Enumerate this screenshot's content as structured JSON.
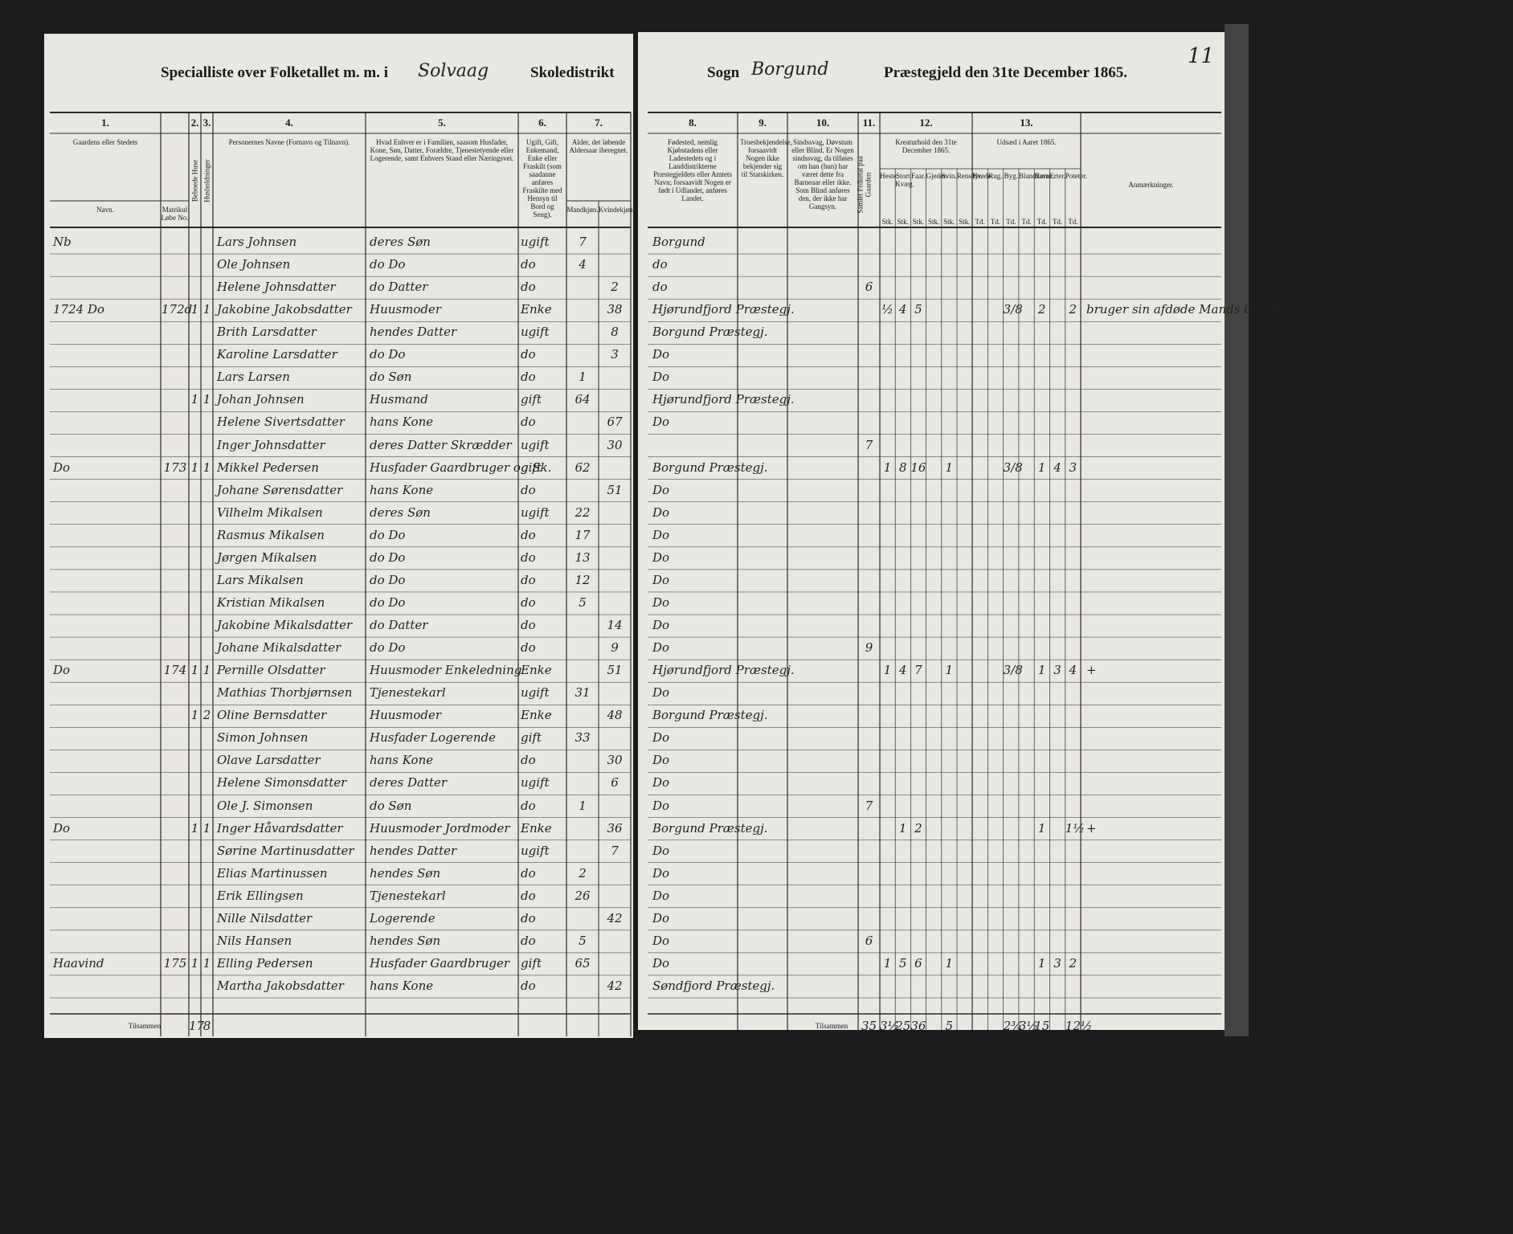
{
  "header": {
    "left_title": "Specialliste over Folketallet m. m. i",
    "place": "Solvaag",
    "district": "Skoledistrikt",
    "sogn_label": "Sogn",
    "sogn": "Borgund",
    "right_title": "Præstegjeld den 31te December 1865.",
    "page_number": "11"
  },
  "columns": [
    {
      "number": "1.",
      "label": "Gaardens eller Stedets",
      "subs": [
        "Navn.",
        "Matrikul Løbe No."
      ]
    },
    {
      "number": "2.",
      "label": "Beboede Huse"
    },
    {
      "number": "3.",
      "label": "Husholdninger"
    },
    {
      "number": "4.",
      "label": "Personernes Navne (Fornavn og Tilnavn)."
    },
    {
      "number": "5.",
      "label": "Hvad Enhver er i Familien, saasom Husfader, Kone, Søn, Datter, Forældre, Tjenestetyende eller Logerende, samt Enhvers Stand eller Næringsvei."
    },
    {
      "number": "6.",
      "label": "Ugift, Gift, Enkemand, Enke eller Fraskilt (som saadanne anføres Fraskilte med Hensyn til Bord og Seng)."
    },
    {
      "number": "7.",
      "label": "Alder, det løbende Aldersaar iberegnet.",
      "subs": [
        "Mandkjøn.",
        "Kvindekjøn."
      ]
    },
    {
      "number": "8.",
      "label": "Fødested, nemlig Kjøbstadens eller Ladestedets og i Landdistrikterne Præstegjeldets eller Amtets Navn; forsaavidt Nogen er født i Udlandet, anføres Landet."
    },
    {
      "number": "9.",
      "label": "Troesbekjendelse, forsaavidt Nogen ikke bekjender sig til Statskirken."
    },
    {
      "number": "10.",
      "label": "Sindssvag, Døvstum eller Blind. Er Nogen sindssvag, da tilføies om han (hun) har været dette fra Barneaar eller ikke. Som Blind anføres den, der ikke har Gangsyn."
    },
    {
      "number": "11.",
      "label": "Samlet Folketal paa Gaarden"
    },
    {
      "number": "12.",
      "label": "Kreaturhold den 31te December 1865.",
      "subs": [
        "Heste.",
        "Stort Kvæg.",
        "Faar.",
        "Gjeder.",
        "Svin.",
        "Rensdyr."
      ],
      "unit": "Stk."
    },
    {
      "number": "13.",
      "label": "Udsæd i Aaret 1865.",
      "subs": [
        "Hvede.",
        "Rug.",
        "Byg.",
        "Blandkorn.",
        "Havre.",
        "Erter.",
        "Poteter."
      ],
      "unit": "Td."
    },
    {
      "label": "Anmærkninger."
    }
  ],
  "rows": [
    {
      "name": "Lars Johnsen",
      "role": "deres Søn",
      "status": "ugift",
      "male_age": "7",
      "birthplace": "Borgund",
      "farm": "Nb"
    },
    {
      "name": "Ole Johnsen",
      "role": "do Do",
      "status": "do",
      "male_age": "4",
      "birthplace": "do"
    },
    {
      "name": "Helene Johnsdatter",
      "role": "do Datter",
      "status": "do",
      "female_age": "2",
      "birthplace": "do",
      "total": "6"
    },
    {
      "farm": "1724 Do",
      "matr": "172d",
      "houses": "1",
      "households": "1",
      "name": "Jakobine Jakobsdatter",
      "role": "Huusmoder",
      "status": "Enke",
      "female_age": "38",
      "birthplace": "Hjørundfjord Præstegj.",
      "livestock": [
        "½",
        "4",
        "5",
        null,
        null,
        null
      ],
      "sowing": [
        null,
        null,
        "3/8",
        null,
        "2",
        null,
        "2"
      ],
      "remark": "bruger sin afdøde Mands Gaard"
    },
    {
      "name": "Brith Larsdatter",
      "role": "hendes Datter",
      "status": "ugift",
      "female_age": "8",
      "birthplace": "Borgund Præstegj."
    },
    {
      "name": "Karoline Larsdatter",
      "role": "do Do",
      "status": "do",
      "female_age": "3",
      "birthplace": "Do"
    },
    {
      "name": "Lars Larsen",
      "role": "do Søn",
      "status": "do",
      "male_age": "1",
      "birthplace": "Do"
    },
    {
      "houses": "1",
      "households": "1",
      "name": "Johan Johnsen",
      "role": "Husmand",
      "status": "gift",
      "male_age": "64",
      "birthplace": "Hjørundfjord Præstegj."
    },
    {
      "name": "Helene Sivertsdatter",
      "role": "hans Kone",
      "status": "do",
      "female_age": "67",
      "birthplace": "Do"
    },
    {
      "name": "Inger Johnsdatter",
      "role": "deres Datter Skrædder",
      "status": "ugift",
      "female_age": "30",
      "total": "7"
    },
    {
      "farm": "Do",
      "matr": "173",
      "houses": "1",
      "households": "1",
      "name": "Mikkel Pedersen",
      "role": "Husfader Gaardbruger og Sk.",
      "status": "gift",
      "male_age": "62",
      "birthplace": "Borgund Præstegj.",
      "livestock": [
        "1",
        "8",
        "16",
        null,
        "1",
        null
      ],
      "sowing": [
        null,
        null,
        "3/8",
        null,
        "1",
        "4",
        "3"
      ]
    },
    {
      "name": "Johane Sørensdatter",
      "role": "hans Kone",
      "status": "do",
      "female_age": "51",
      "birthplace": "Do"
    },
    {
      "name": "Vilhelm Mikalsen",
      "role": "deres Søn",
      "status": "ugift",
      "male_age": "22",
      "birthplace": "Do"
    },
    {
      "name": "Rasmus Mikalsen",
      "role": "do Do",
      "status": "do",
      "male_age": "17",
      "birthplace": "Do"
    },
    {
      "name": "Jørgen Mikalsen",
      "role": "do Do",
      "status": "do",
      "male_age": "13",
      "birthplace": "Do"
    },
    {
      "name": "Lars Mikalsen",
      "role": "do Do",
      "status": "do",
      "male_age": "12",
      "birthplace": "Do"
    },
    {
      "name": "Kristian Mikalsen",
      "role": "do Do",
      "status": "do",
      "male_age": "5",
      "birthplace": "Do"
    },
    {
      "name": "Jakobine Mikalsdatter",
      "role": "do Datter",
      "status": "do",
      "female_age": "14",
      "birthplace": "Do"
    },
    {
      "name": "Johane Mikalsdatter",
      "role": "do Do",
      "status": "do",
      "female_age": "9",
      "birthplace": "Do",
      "total": "9"
    },
    {
      "farm": "Do",
      "matr": "174",
      "houses": "1",
      "households": "1",
      "name": "Pernille Olsdatter",
      "role": "Huusmoder Enkeledning",
      "status": "Enke",
      "female_age": "51",
      "birthplace": "Hjørundfjord Præstegj.",
      "livestock": [
        "1",
        "4",
        "7",
        null,
        "1",
        null
      ],
      "sowing": [
        null,
        null,
        "3/8",
        null,
        "1",
        "3",
        "4"
      ],
      "remark": "+"
    },
    {
      "name": "Mathias Thorbjørnsen",
      "role": "Tjenestekarl",
      "status": "ugift",
      "male_age": "31",
      "birthplace": "Do"
    },
    {
      "houses": "1",
      "households": "2",
      "name": "Oline Bernsdatter",
      "role": "Huusmoder",
      "status": "Enke",
      "female_age": "48",
      "birthplace": "Borgund Præstegj."
    },
    {
      "name": "Simon Johnsen",
      "role": "Husfader Logerende",
      "status": "gift",
      "male_age": "33",
      "birthplace": "Do"
    },
    {
      "name": "Olave Larsdatter",
      "role": "hans Kone",
      "status": "do",
      "female_age": "30",
      "birthplace": "Do"
    },
    {
      "name": "Helene Simonsdatter",
      "role": "deres Datter",
      "status": "ugift",
      "female_age": "6",
      "birthplace": "Do"
    },
    {
      "name": "Ole J. Simonsen",
      "role": "do Søn",
      "status": "do",
      "male_age": "1",
      "birthplace": "Do",
      "total": "7"
    },
    {
      "farm": "Do",
      "houses": "1",
      "households": "1",
      "name": "Inger Håvardsdatter",
      "role": "Huusmoder Jordmoder",
      "status": "Enke",
      "female_age": "36",
      "birthplace": "Borgund Præstegj.",
      "livestock": [
        null,
        "1",
        "2",
        null,
        null,
        null
      ],
      "sowing": [
        null,
        null,
        null,
        null,
        "1",
        null,
        "1½"
      ],
      "remark": "+"
    },
    {
      "name": "Sørine Martinusdatter",
      "role": "hendes Datter",
      "status": "ugift",
      "female_age": "7",
      "birthplace": "Do"
    },
    {
      "name": "Elias Martinussen",
      "role": "hendes Søn",
      "status": "do",
      "male_age": "2",
      "birthplace": "Do"
    },
    {
      "name": "Erik Ellingsen",
      "role": "Tjenestekarl",
      "status": "do",
      "male_age": "26",
      "birthplace": "Do"
    },
    {
      "name": "Nille Nilsdatter",
      "role": "Logerende",
      "status": "do",
      "female_age": "42",
      "birthplace": "Do"
    },
    {
      "name": "Nils Hansen",
      "role": "hendes Søn",
      "status": "do",
      "male_age": "5",
      "birthplace": "Do",
      "total": "6"
    },
    {
      "farm": "Haavind",
      "matr": "175",
      "houses": "1",
      "households": "1",
      "name": "Elling Pedersen",
      "role": "Husfader Gaardbruger",
      "status": "gift",
      "male_age": "65",
      "birthplace": "Do",
      "livestock": [
        "1",
        "5",
        "6",
        null,
        "1",
        null
      ],
      "sowing": [
        null,
        null,
        null,
        null,
        "1",
        "3",
        "2"
      ]
    },
    {
      "name": "Martha Jakobsdatter",
      "role": "hans Kone",
      "status": "do",
      "female_age": "42",
      "birthplace": "Søndfjord Præstegj."
    }
  ],
  "totals": {
    "label_left": "Tilsammen",
    "houses": "17",
    "households": "8",
    "label_right": "Tilsammen",
    "total": "35",
    "livestock": [
      "3½",
      "25",
      "36",
      null,
      "5",
      null
    ],
    "sowing": [
      null,
      null,
      "2¾",
      "3½",
      "15",
      null,
      "12½"
    ]
  }
}
